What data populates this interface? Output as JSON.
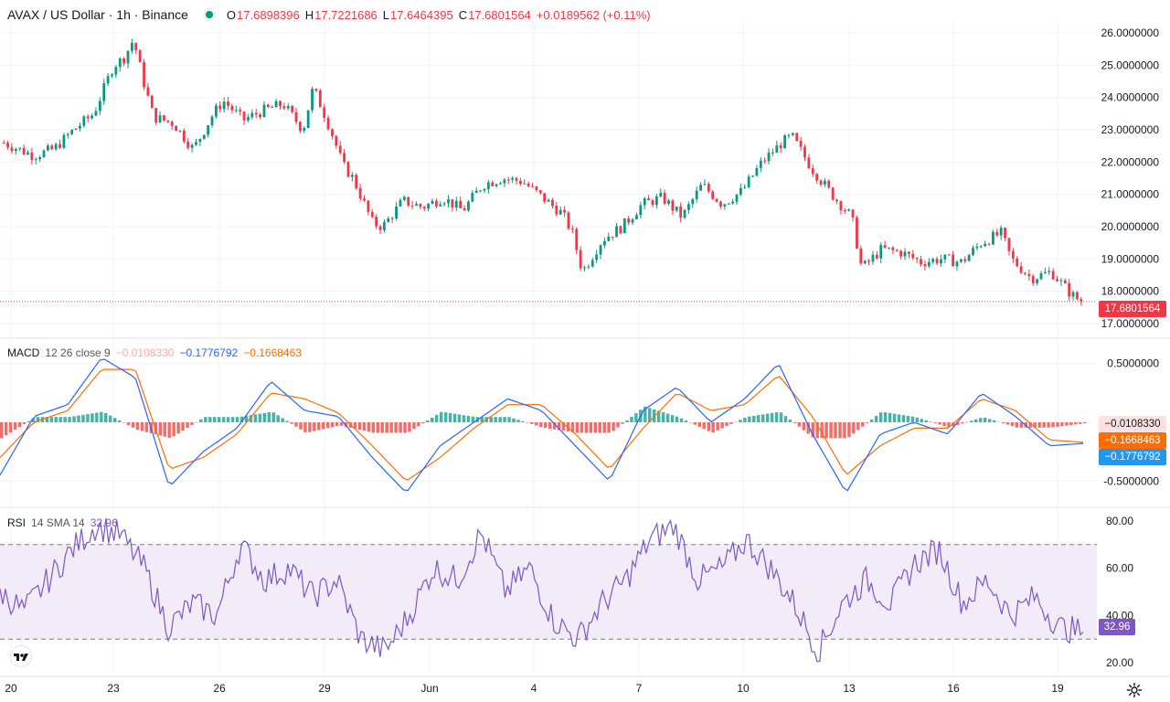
{
  "header": {
    "symbol": "AVAX / US Dollar · 1h · Binance",
    "open_label": "O",
    "open": "17.6898396",
    "high_label": "H",
    "high": "17.7221686",
    "low_label": "L",
    "low": "17.6464395",
    "close_label": "C",
    "close": "17.6801564",
    "change": "+0.0189562 (+0.11%)"
  },
  "macd_legend": {
    "name": "MACD",
    "params": "12 26 close 9",
    "histogram": "−0.0108330",
    "macd": "−0.1776792",
    "signal": "−0.1668463"
  },
  "rsi_legend": {
    "name": "RSI",
    "params": "14 SMA 14",
    "value": "32.96"
  },
  "badges": {
    "price": "17.6801564",
    "hist": "−0.0108330",
    "signal": "−0.1668463",
    "macd": "−0.1776792",
    "rsi": "32.96"
  },
  "icons": {
    "logo": "tradingview-logo-icon",
    "settings": "gear-icon",
    "visibility": "eye-dot-icon"
  },
  "colors": {
    "up": "#089981",
    "down": "#f23645",
    "macd_line": "#2962ff",
    "signal_line": "#ff6d00",
    "hist_up": "#26a69a",
    "hist_down": "#ef5350",
    "rsi_line": "#7e57c2",
    "rsi_band": "#ede7f6"
  },
  "chart_data": [
    {
      "type": "candlestick",
      "title": "AVAX / US Dollar · 1h · Binance",
      "price_axis_ticks": [
        "26.0000000",
        "25.0000000",
        "24.0000000",
        "23.0000000",
        "22.0000000",
        "21.0000000",
        "20.0000000",
        "19.0000000",
        "18.0000000",
        "17.0000000"
      ],
      "ylim": [
        16.6,
        26.4
      ],
      "last_price": 17.6801564,
      "time_axis_ticks": [
        "20",
        "23",
        "26",
        "29",
        "Jun",
        "4",
        "7",
        "10",
        "13",
        "16",
        "19"
      ],
      "approx_close_path": [
        [
          0,
          22.6
        ],
        [
          3,
          22.2
        ],
        [
          5,
          22.4
        ],
        [
          7,
          23.0
        ],
        [
          9,
          23.5
        ],
        [
          11,
          25.0
        ],
        [
          12,
          25.2
        ],
        [
          13,
          25.8
        ],
        [
          14,
          24.5
        ],
        [
          15,
          23.4
        ],
        [
          17,
          23.2
        ],
        [
          19,
          22.4
        ],
        [
          21,
          23.5
        ],
        [
          22,
          23.9
        ],
        [
          24,
          23.3
        ],
        [
          26,
          23.6
        ],
        [
          28,
          23.8
        ],
        [
          30,
          23.0
        ],
        [
          31,
          24.3
        ],
        [
          32,
          23.6
        ],
        [
          33,
          22.8
        ],
        [
          34,
          21.9
        ],
        [
          35,
          21.5
        ],
        [
          37,
          20.1
        ],
        [
          38,
          20.0
        ],
        [
          40,
          20.8
        ],
        [
          42,
          20.6
        ],
        [
          44,
          20.9
        ],
        [
          46,
          20.5
        ],
        [
          48,
          21.3
        ],
        [
          50,
          21.5
        ],
        [
          52,
          21.4
        ],
        [
          54,
          20.9
        ],
        [
          56,
          20.4
        ],
        [
          57,
          19.8
        ],
        [
          58,
          18.6
        ],
        [
          60,
          19.6
        ],
        [
          62,
          20.0
        ],
        [
          64,
          20.7
        ],
        [
          66,
          20.9
        ],
        [
          68,
          20.3
        ],
        [
          70,
          21.3
        ],
        [
          72,
          20.7
        ],
        [
          74,
          21.1
        ],
        [
          76,
          22.0
        ],
        [
          78,
          22.6
        ],
        [
          79,
          22.8
        ],
        [
          81,
          21.8
        ],
        [
          83,
          21.0
        ],
        [
          85,
          20.3
        ],
        [
          86,
          18.7
        ],
        [
          88,
          19.3
        ],
        [
          90,
          19.2
        ],
        [
          92,
          18.9
        ],
        [
          94,
          19.0
        ],
        [
          96,
          18.9
        ],
        [
          98,
          19.5
        ],
        [
          100,
          19.8
        ],
        [
          101,
          19.0
        ],
        [
          103,
          18.4
        ],
        [
          105,
          18.6
        ],
        [
          107,
          17.9
        ],
        [
          108,
          17.68
        ]
      ]
    },
    {
      "type": "line",
      "title": "MACD 12 26 close 9",
      "ylim": [
        -0.7,
        0.7
      ],
      "axis_ticks": [
        "0.5000000",
        "-0.5000000"
      ],
      "series": [
        {
          "name": "MACD",
          "approx_values": [
            -0.45,
            0.05,
            0.15,
            0.55,
            0.38,
            -0.55,
            -0.25,
            -0.05,
            0.35,
            0.1,
            0.05,
            -0.3,
            -0.6,
            -0.2,
            0.0,
            0.2,
            0.1,
            -0.2,
            -0.5,
            0.1,
            0.3,
            0.0,
            0.2,
            0.5,
            -0.1,
            -0.6,
            -0.1,
            0.0,
            -0.1,
            0.25,
            0.05,
            -0.2,
            -0.18
          ]
        },
        {
          "name": "Signal",
          "approx_values": [
            -0.3,
            0.0,
            0.1,
            0.45,
            0.45,
            -0.4,
            -0.3,
            -0.1,
            0.25,
            0.2,
            0.08,
            -0.2,
            -0.5,
            -0.3,
            -0.05,
            0.15,
            0.15,
            -0.1,
            -0.4,
            -0.05,
            0.25,
            0.1,
            0.15,
            0.4,
            0.05,
            -0.45,
            -0.2,
            -0.05,
            -0.05,
            0.2,
            0.1,
            -0.15,
            -0.17
          ]
        }
      ]
    },
    {
      "type": "line",
      "title": "RSI 14 SMA 14",
      "ylim": [
        15,
        85
      ],
      "axis_ticks": [
        "80.00",
        "60.00",
        "40.00",
        "20.00"
      ],
      "bands": [
        30,
        70
      ],
      "series": [
        {
          "name": "RSI",
          "approx_values": [
            50,
            42,
            55,
            68,
            78,
            74,
            60,
            35,
            45,
            40,
            70,
            55,
            60,
            48,
            55,
            30,
            25,
            40,
            60,
            55,
            75,
            50,
            60,
            38,
            30,
            45,
            55,
            72,
            78,
            55,
            60,
            72,
            60,
            45,
            25,
            45,
            55,
            45,
            62,
            68,
            45,
            55,
            40,
            48,
            35,
            33
          ]
        }
      ]
    }
  ]
}
